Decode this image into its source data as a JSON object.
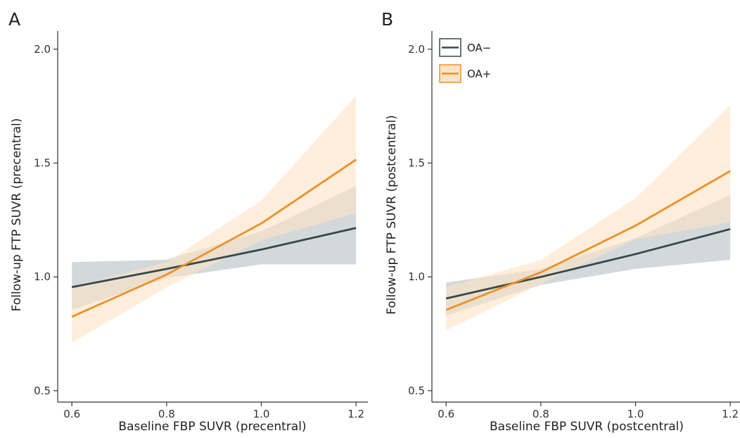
{
  "colors": {
    "oa_neg": "#35494a",
    "oa_pos": "#ee9028",
    "oa_neg_band": "#cbd2d5",
    "oa_pos_band": "#fde3c3"
  },
  "chart_data": [
    {
      "type": "line",
      "panel_label": "A",
      "xlabel": "Baseline FBP SUVR (precentral)",
      "ylabel": "Follow-up FTP SUVR (precentral)",
      "xlim": [
        0.57,
        1.225
      ],
      "ylim": [
        0.45,
        2.08
      ],
      "x_ticks": [
        "0.6",
        "0.8",
        "1.0",
        "1.2"
      ],
      "y_ticks": [
        "0.5",
        "1.0",
        "1.5",
        "2.0"
      ],
      "grid": false,
      "series": [
        {
          "name": "OA−",
          "color": "#35494a",
          "band_color": "#cbd2d5",
          "x": [
            0.6,
            0.8,
            1.0,
            1.2
          ],
          "y": [
            0.955,
            1.035,
            1.12,
            1.215
          ],
          "lower": [
            0.855,
            0.995,
            1.055,
            1.055
          ],
          "upper": [
            1.065,
            1.075,
            1.2,
            1.4
          ]
        },
        {
          "name": "OA+",
          "color": "#ee9028",
          "band_color": "#fde3c3",
          "x": [
            0.6,
            0.8,
            1.0,
            1.2
          ],
          "y": [
            0.825,
            1.01,
            1.235,
            1.515
          ],
          "lower": [
            0.71,
            0.955,
            1.16,
            1.28
          ],
          "upper": [
            0.955,
            1.065,
            1.335,
            1.795
          ]
        }
      ]
    },
    {
      "type": "line",
      "panel_label": "B",
      "xlabel": "Baseline FBP SUVR (postcentral)",
      "ylabel": "Follow-up FTP SUVR (postcentral)",
      "xlim": [
        0.57,
        1.225
      ],
      "ylim": [
        0.45,
        2.08
      ],
      "x_ticks": [
        "0.6",
        "0.8",
        "1.0",
        "1.2"
      ],
      "y_ticks": [
        "0.5",
        "1.0",
        "1.5",
        "2.0"
      ],
      "grid": false,
      "legend": {
        "position": "top-left",
        "entries": [
          "OA−",
          "OA+"
        ]
      },
      "series": [
        {
          "name": "OA−",
          "color": "#35494a",
          "band_color": "#cbd2d5",
          "x": [
            0.6,
            0.8,
            1.0,
            1.2
          ],
          "y": [
            0.905,
            1.0,
            1.1,
            1.21
          ],
          "lower": [
            0.83,
            0.965,
            1.035,
            1.075
          ],
          "upper": [
            0.975,
            1.035,
            1.17,
            1.36
          ]
        },
        {
          "name": "OA+",
          "color": "#ee9028",
          "band_color": "#fde3c3",
          "x": [
            0.6,
            0.8,
            1.0,
            1.2
          ],
          "y": [
            0.855,
            1.02,
            1.225,
            1.465
          ],
          "lower": [
            0.765,
            0.97,
            1.165,
            1.24
          ],
          "upper": [
            0.955,
            1.075,
            1.345,
            1.755
          ]
        }
      ]
    }
  ]
}
